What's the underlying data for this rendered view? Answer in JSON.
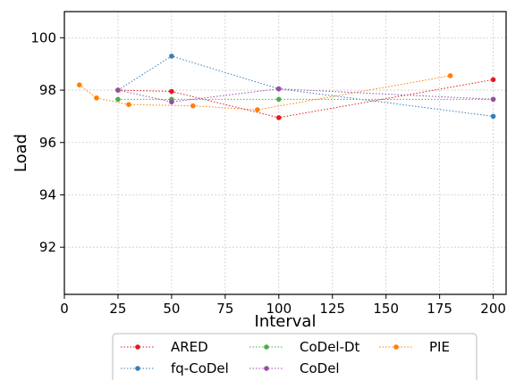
{
  "chart_data": {
    "type": "line",
    "title": "",
    "xlabel": "Interval",
    "ylabel": "Load",
    "xlim": [
      0,
      206
    ],
    "ylim": [
      90.2,
      101
    ],
    "xticks": [
      0,
      25,
      50,
      75,
      100,
      125,
      150,
      175,
      200
    ],
    "yticks": [
      92,
      94,
      96,
      98,
      100
    ],
    "grid": true,
    "legend_position": "bottom-outside",
    "series": [
      {
        "name": "ARED",
        "color": "#e41a1c",
        "x": [
          25,
          50,
          100,
          200
        ],
        "y": [
          98.0,
          97.95,
          96.95,
          98.4
        ]
      },
      {
        "name": "fq-CoDel",
        "color": "#377eb8",
        "x": [
          25,
          50,
          100,
          200
        ],
        "y": [
          98.0,
          99.3,
          98.05,
          97.0
        ]
      },
      {
        "name": "CoDel-Dt",
        "color": "#4daf4a",
        "x": [
          25,
          50,
          100,
          200
        ],
        "y": [
          97.65,
          97.65,
          97.65,
          97.65
        ]
      },
      {
        "name": "CoDel",
        "color": "#984ea3",
        "x": [
          25,
          50,
          100,
          200
        ],
        "y": [
          98.0,
          97.55,
          98.05,
          97.65
        ]
      },
      {
        "name": "PIE",
        "color": "#ff7f00",
        "x": [
          7,
          15,
          30,
          60,
          90,
          180
        ],
        "y": [
          98.2,
          97.7,
          97.45,
          97.4,
          97.25,
          98.55
        ]
      }
    ]
  }
}
